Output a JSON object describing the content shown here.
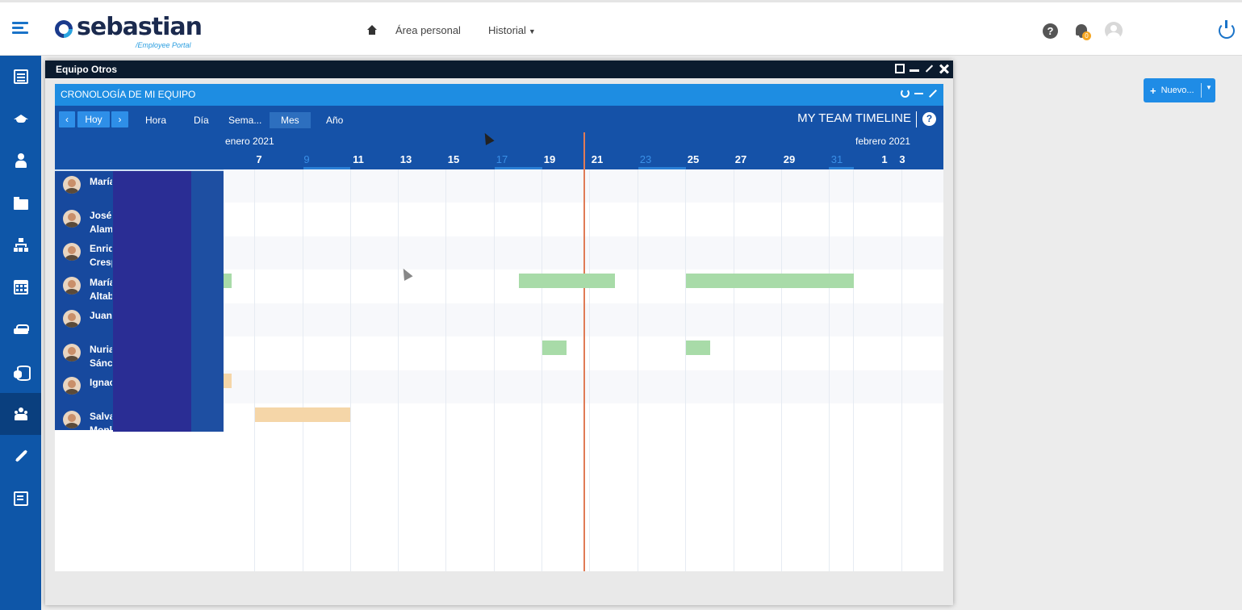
{
  "brand": {
    "name": "sebastian",
    "subtitle": "/Employee Portal"
  },
  "nav": {
    "home_icon": "home-icon",
    "personal": "Área personal",
    "history": "Historial"
  },
  "top_icons": {
    "help": "?",
    "notifications_badge": "0"
  },
  "sidebar": {
    "items": [
      "document-icon",
      "graduation-cap-icon",
      "user-icon",
      "folder-icon",
      "org-chart-icon",
      "calendar-icon",
      "car-icon",
      "coins-icon",
      "team-icon",
      "plane-icon",
      "edit-document-icon"
    ],
    "active_index": 8
  },
  "new_button": {
    "label": "Nuevo..."
  },
  "window": {
    "title": "Equipo Otros"
  },
  "panel": {
    "title": "CRONOLOGÍA DE MI EQUIPO"
  },
  "toolbar": {
    "prev": "‹",
    "today": "Hoy",
    "next": "›",
    "views": [
      "Hora",
      "Día",
      "Sema...",
      "Mes",
      "Año"
    ],
    "active_view": "Mes",
    "title": "MY TEAM TIMELINE",
    "help": "?"
  },
  "timeline": {
    "months": [
      {
        "label": "enero 2021"
      },
      {
        "label": "febrero 2021"
      }
    ],
    "day_labels": [
      {
        "day": "7",
        "weekend": false
      },
      {
        "day": "9",
        "weekend": true
      },
      {
        "day": "11",
        "weekend": false
      },
      {
        "day": "13",
        "weekend": false
      },
      {
        "day": "15",
        "weekend": false
      },
      {
        "day": "17",
        "weekend": true
      },
      {
        "day": "19",
        "weekend": false
      },
      {
        "day": "21",
        "weekend": false
      },
      {
        "day": "23",
        "weekend": true
      },
      {
        "day": "25",
        "weekend": false
      },
      {
        "day": "27",
        "weekend": false
      },
      {
        "day": "29",
        "weekend": false
      },
      {
        "day": "31",
        "weekend": true
      },
      {
        "day": "1",
        "weekend": false
      },
      {
        "day": "3",
        "weekend": false
      }
    ],
    "colors": {
      "approved": "#a8dba8",
      "pending": "#f5d6a8",
      "today": "#e07b56"
    }
  },
  "people": [
    {
      "name": "María"
    },
    {
      "name": "José I\nAlam"
    },
    {
      "name": "Enriq\nCresp"
    },
    {
      "name": "María\nAltab"
    },
    {
      "name": "Juan C"
    },
    {
      "name": "Nuria\nSánch"
    },
    {
      "name": "Ignac"
    },
    {
      "name": "Salva\nMonl"
    }
  ]
}
